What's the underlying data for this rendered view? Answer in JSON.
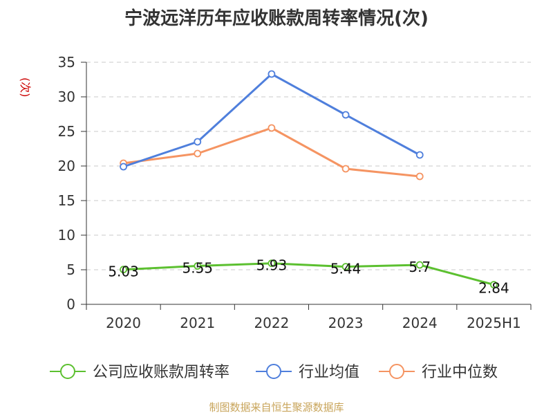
{
  "chart_data": {
    "type": "line",
    "title": "宁波远洋历年应收账款周转率情况(次)",
    "ylabel": "(次)",
    "categories": [
      "2020",
      "2021",
      "2022",
      "2023",
      "2024",
      "2025H1"
    ],
    "ylim": [
      0,
      35
    ],
    "yticks": [
      0,
      5,
      10,
      15,
      20,
      25,
      30,
      35
    ],
    "grid": true,
    "legend_position": "bottom",
    "series": [
      {
        "name": "公司应收账款周转率",
        "color": "#5cc030",
        "values": [
          5.03,
          5.55,
          5.93,
          5.44,
          5.7,
          2.84
        ],
        "labels": [
          "5.03",
          "5.55",
          "5.93",
          "5.44",
          "5.7",
          "2.84"
        ]
      },
      {
        "name": "行业均值",
        "color": "#4f7fdc",
        "values": [
          19.9,
          23.5,
          33.3,
          27.4,
          21.6,
          null
        ]
      },
      {
        "name": "行业中位数",
        "color": "#f59462",
        "values": [
          20.4,
          21.8,
          25.5,
          19.6,
          18.5,
          null
        ]
      }
    ]
  },
  "source": "制图数据来自恒生聚源数据库"
}
